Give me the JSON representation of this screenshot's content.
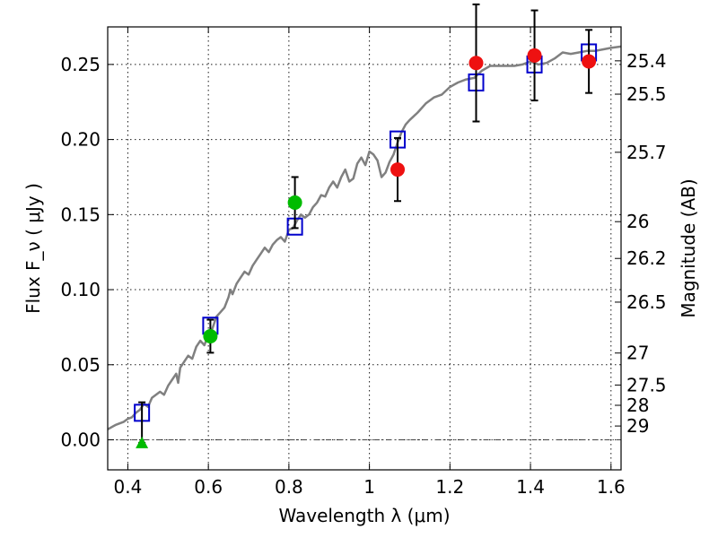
{
  "chart_data": {
    "type": "scatter",
    "xlabel": "Wavelength  λ (μm)",
    "ylabel": "Flux  F_ν ( μJy )",
    "y2label": "Magnitude (AB)",
    "xlim": [
      0.35,
      1.625
    ],
    "ylim": [
      -0.02,
      0.275
    ],
    "x_ticks": [
      0.4,
      0.6,
      0.8,
      1.0,
      1.2,
      1.4,
      1.6
    ],
    "x_tick_labels": [
      "0.4",
      "0.6",
      "0.8",
      "1",
      "1.2",
      "1.4",
      "1.6"
    ],
    "y_ticks": [
      0.0,
      0.05,
      0.1,
      0.15,
      0.2,
      0.25
    ],
    "y_tick_labels": [
      "0.00",
      "0.05",
      "0.10",
      "0.15",
      "0.20",
      "0.25"
    ],
    "magnitude_ticks": [
      {
        "label": "25.4",
        "flux": 0.2524
      },
      {
        "label": "25.5",
        "flux": 0.2302
      },
      {
        "label": "25.7",
        "flux": 0.1915
      },
      {
        "label": "26",
        "flux": 0.1453
      },
      {
        "label": "26.2",
        "flux": 0.1208
      },
      {
        "label": "26.5",
        "flux": 0.0917
      },
      {
        "label": "27",
        "flux": 0.0578
      },
      {
        "label": "27.5",
        "flux": 0.0365
      },
      {
        "label": "28",
        "flux": 0.023
      },
      {
        "label": "29",
        "flux": 0.0092
      }
    ],
    "grid": true,
    "zero_line": true,
    "colors": {
      "model": "#808080",
      "model_points": "#0000cc",
      "green": "#00bb00",
      "red": "#ee1111",
      "errorbar": "#000000"
    },
    "series": [
      {
        "marker": "open-square",
        "color": "#0000cc",
        "x": [
          0.435,
          0.605,
          0.815,
          1.07,
          1.265,
          1.41,
          1.545
        ],
        "y": [
          0.018,
          0.076,
          0.142,
          0.2,
          0.238,
          0.25,
          0.258
        ]
      },
      {
        "marker": "circle",
        "color": "#00bb00",
        "x": [
          0.605,
          0.815
        ],
        "y": [
          0.069,
          0.158
        ],
        "yerr": [
          0.011,
          0.017
        ]
      },
      {
        "marker": "triangle",
        "color": "#00bb00",
        "x": [
          0.435
        ],
        "y": [
          -0.002
        ],
        "yerr_lower": [
          0.0
        ],
        "yerr_upper": [
          0.027
        ]
      },
      {
        "marker": "circle",
        "color": "#ee1111",
        "x": [
          1.07,
          1.265,
          1.41,
          1.545
        ],
        "y": [
          0.18,
          0.251,
          0.256,
          0.252
        ],
        "yerr": [
          0.021,
          0.039,
          0.03,
          0.021
        ]
      }
    ],
    "model_spectrum": {
      "color": "#808080",
      "x": [
        0.35,
        0.37,
        0.39,
        0.4,
        0.41,
        0.42,
        0.43,
        0.44,
        0.45,
        0.46,
        0.47,
        0.48,
        0.49,
        0.5,
        0.51,
        0.52,
        0.525,
        0.53,
        0.54,
        0.55,
        0.56,
        0.57,
        0.58,
        0.59,
        0.6,
        0.61,
        0.615,
        0.62,
        0.63,
        0.64,
        0.65,
        0.655,
        0.66,
        0.67,
        0.68,
        0.69,
        0.7,
        0.71,
        0.72,
        0.73,
        0.74,
        0.75,
        0.76,
        0.77,
        0.78,
        0.79,
        0.8,
        0.81,
        0.82,
        0.83,
        0.84,
        0.85,
        0.86,
        0.87,
        0.88,
        0.89,
        0.9,
        0.91,
        0.92,
        0.93,
        0.94,
        0.95,
        0.96,
        0.97,
        0.98,
        0.99,
        1.0,
        1.01,
        1.02,
        1.03,
        1.04,
        1.05,
        1.06,
        1.07,
        1.08,
        1.09,
        1.1,
        1.12,
        1.14,
        1.16,
        1.18,
        1.2,
        1.22,
        1.24,
        1.26,
        1.28,
        1.3,
        1.32,
        1.34,
        1.36,
        1.38,
        1.4,
        1.42,
        1.44,
        1.46,
        1.48,
        1.5,
        1.52,
        1.54,
        1.56,
        1.58,
        1.6,
        1.625
      ],
      "y": [
        0.007,
        0.01,
        0.012,
        0.014,
        0.015,
        0.018,
        0.02,
        0.024,
        0.022,
        0.028,
        0.03,
        0.032,
        0.03,
        0.036,
        0.04,
        0.044,
        0.038,
        0.048,
        0.052,
        0.056,
        0.054,
        0.062,
        0.066,
        0.063,
        0.07,
        0.074,
        0.078,
        0.082,
        0.085,
        0.088,
        0.095,
        0.1,
        0.097,
        0.104,
        0.108,
        0.112,
        0.11,
        0.116,
        0.12,
        0.124,
        0.128,
        0.125,
        0.13,
        0.133,
        0.135,
        0.132,
        0.14,
        0.141,
        0.146,
        0.15,
        0.148,
        0.15,
        0.155,
        0.158,
        0.163,
        0.162,
        0.168,
        0.172,
        0.168,
        0.175,
        0.18,
        0.172,
        0.174,
        0.184,
        0.188,
        0.183,
        0.192,
        0.19,
        0.186,
        0.175,
        0.178,
        0.185,
        0.19,
        0.198,
        0.205,
        0.21,
        0.213,
        0.218,
        0.224,
        0.228,
        0.23,
        0.235,
        0.238,
        0.24,
        0.241,
        0.246,
        0.249,
        0.249,
        0.249,
        0.249,
        0.25,
        0.252,
        0.25,
        0.251,
        0.254,
        0.258,
        0.257,
        0.258,
        0.259,
        0.259,
        0.26,
        0.261,
        0.262
      ]
    }
  }
}
